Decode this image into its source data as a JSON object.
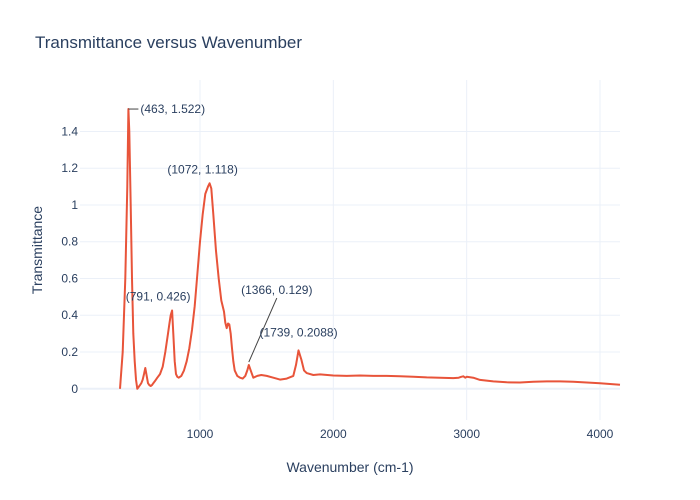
{
  "chart_data": {
    "type": "line",
    "title": "Transmittance versus Wavenumber",
    "xlabel": "Wavenumber (cm-1)",
    "ylabel": "Transmittance",
    "xlim": [
      100,
      4150
    ],
    "ylim": [
      -0.17,
      1.68
    ],
    "x_ticks": [
      1000,
      2000,
      3000,
      4000
    ],
    "x_tick_labels": [
      "1000",
      "2000",
      "3000",
      "4000"
    ],
    "y_ticks": [
      0,
      0.2,
      0.4,
      0.6,
      0.8,
      1,
      1.2,
      1.4
    ],
    "y_tick_labels": [
      "0",
      "0.2",
      "0.4",
      "0.6",
      "0.8",
      "1",
      "1.2",
      "1.4"
    ],
    "grid": true,
    "line_color": "#e8543a",
    "series": [
      {
        "x": [
          400,
          420,
          440,
          455,
          463,
          470,
          480,
          490,
          500,
          510,
          520,
          530,
          540,
          550,
          560,
          570,
          580,
          590,
          600,
          610,
          620,
          630,
          640,
          650,
          660,
          680,
          700,
          720,
          740,
          760,
          770,
          780,
          791,
          800,
          810,
          820,
          830,
          840,
          860,
          880,
          900,
          920,
          940,
          960,
          980,
          1000,
          1020,
          1040,
          1060,
          1072,
          1085,
          1100,
          1120,
          1140,
          1160,
          1180,
          1190,
          1200,
          1210,
          1220,
          1230,
          1240,
          1250,
          1260,
          1280,
          1300,
          1320,
          1340,
          1355,
          1366,
          1380,
          1400,
          1430,
          1460,
          1500,
          1550,
          1600,
          1650,
          1700,
          1720,
          1739,
          1760,
          1780,
          1800,
          1850,
          1900,
          2000,
          2100,
          2200,
          2300,
          2400,
          2500,
          2600,
          2700,
          2800,
          2900,
          2940,
          2960,
          2975,
          2990,
          3000,
          3050,
          3100,
          3200,
          3300,
          3400,
          3500,
          3600,
          3700,
          3800,
          3900,
          4000,
          4100,
          4150
        ],
        "y": [
          0.0,
          0.2,
          0.6,
          1.1,
          1.522,
          1.4,
          1.0,
          0.6,
          0.3,
          0.15,
          0.05,
          0.0,
          0.01,
          0.02,
          0.03,
          0.05,
          0.08,
          0.113,
          0.07,
          0.03,
          0.02,
          0.015,
          0.02,
          0.03,
          0.04,
          0.06,
          0.08,
          0.12,
          0.2,
          0.3,
          0.35,
          0.4,
          0.426,
          0.3,
          0.15,
          0.08,
          0.065,
          0.06,
          0.07,
          0.1,
          0.15,
          0.22,
          0.32,
          0.45,
          0.62,
          0.8,
          0.95,
          1.06,
          1.1,
          1.118,
          1.09,
          0.95,
          0.75,
          0.6,
          0.48,
          0.42,
          0.36,
          0.33,
          0.355,
          0.35,
          0.3,
          0.22,
          0.15,
          0.1,
          0.07,
          0.06,
          0.055,
          0.07,
          0.1,
          0.129,
          0.1,
          0.06,
          0.07,
          0.075,
          0.07,
          0.06,
          0.05,
          0.055,
          0.07,
          0.13,
          0.2088,
          0.16,
          0.1,
          0.085,
          0.075,
          0.078,
          0.072,
          0.07,
          0.072,
          0.07,
          0.07,
          0.068,
          0.065,
          0.062,
          0.06,
          0.058,
          0.06,
          0.065,
          0.068,
          0.06,
          0.065,
          0.06,
          0.048,
          0.04,
          0.035,
          0.034,
          0.038,
          0.04,
          0.04,
          0.038,
          0.034,
          0.03,
          0.025,
          0.022
        ]
      }
    ],
    "annotations": [
      {
        "x": 463,
        "y": 1.522,
        "text": "(463, 1.522)"
      },
      {
        "x": 1072,
        "y": 1.118,
        "text": "(1072, 1.118)"
      },
      {
        "x": 791,
        "y": 0.426,
        "text": "(791, 0.426)"
      },
      {
        "x": 1366,
        "y": 0.129,
        "text": "(1366, 0.129)"
      },
      {
        "x": 1739,
        "y": 0.2088,
        "text": "(1739, 0.2088)"
      }
    ]
  }
}
